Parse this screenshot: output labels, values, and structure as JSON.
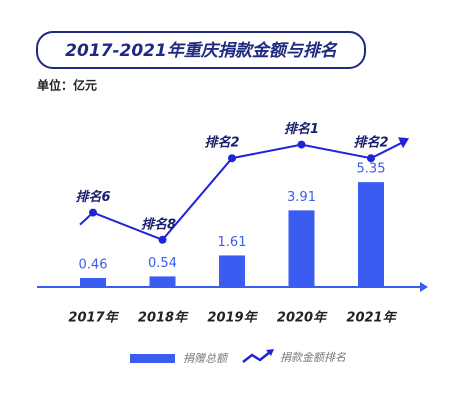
{
  "chart_data": {
    "type": "bar-line",
    "title": "2017-2021年重庆捐款金额与排名",
    "subtitle": "单位：亿元",
    "categories": [
      "2017年",
      "2018年",
      "2019年",
      "2020年",
      "2021年"
    ],
    "series": [
      {
        "name": "捐赠总额",
        "color": "#3a5cf0",
        "values": [
          0.46,
          0.54,
          1.61,
          3.91,
          5.35
        ]
      },
      {
        "name": "捐款金额排名",
        "color": "#1f24d6",
        "axis": "y2",
        "values": [
          6,
          8,
          2,
          1,
          2
        ],
        "value_labels": [
          "排名6",
          "排名8",
          "排名2",
          "排名1",
          "排名2"
        ]
      }
    ]
  }
}
